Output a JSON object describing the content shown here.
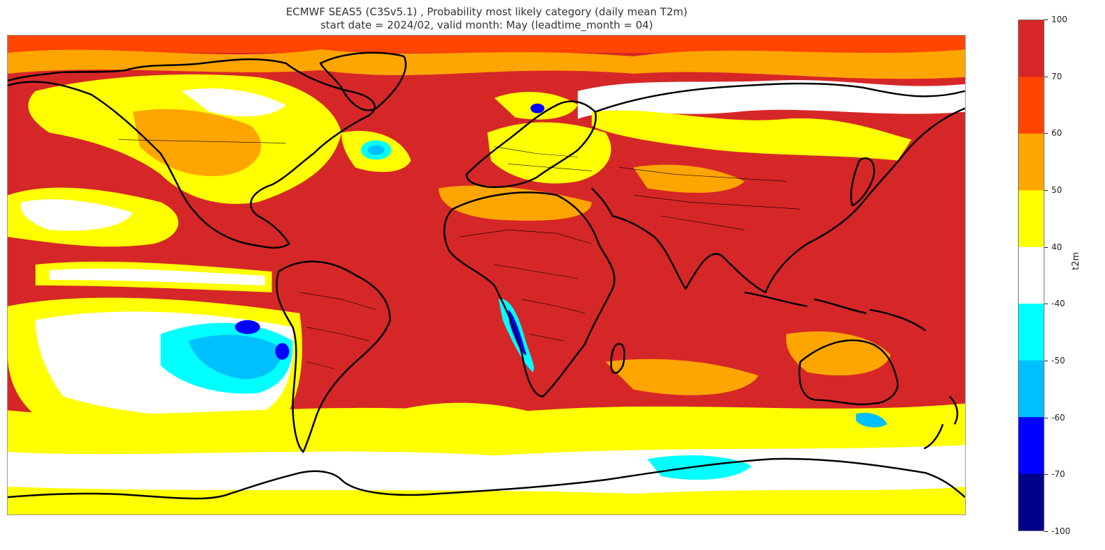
{
  "title": {
    "line1": "ECMWF SEAS5 (C3Sv5.1) , Probability most likely category (daily mean T2m)",
    "line2": "start date = 2024/02, valid month: May (leadtime_month = 04)"
  },
  "colorbar": {
    "label": "t2m",
    "bins": [
      {
        "from": 70,
        "to": 100,
        "color": "#d62728"
      },
      {
        "from": 60,
        "to": 70,
        "color": "#ff4500"
      },
      {
        "from": 50,
        "to": 60,
        "color": "#ffa500"
      },
      {
        "from": 40,
        "to": 50,
        "color": "#ffff00"
      },
      {
        "from": -40,
        "to": 40,
        "color": "#ffffff"
      },
      {
        "from": -50,
        "to": -40,
        "color": "#00ffff"
      },
      {
        "from": -60,
        "to": -50,
        "color": "#00bfff"
      },
      {
        "from": -70,
        "to": -60,
        "color": "#0000ff"
      },
      {
        "from": -100,
        "to": -70,
        "color": "#00008b"
      }
    ],
    "ticks": [
      "100",
      "70",
      "60",
      "50",
      "40",
      "-40",
      "-50",
      "-60",
      "-70",
      "-100"
    ]
  },
  "map": {
    "projection": "plate-carree",
    "extent_lon": [
      -180,
      180
    ],
    "extent_lat": [
      -90,
      90
    ],
    "coastline_color": "#000000",
    "border_color": "#000000"
  }
}
